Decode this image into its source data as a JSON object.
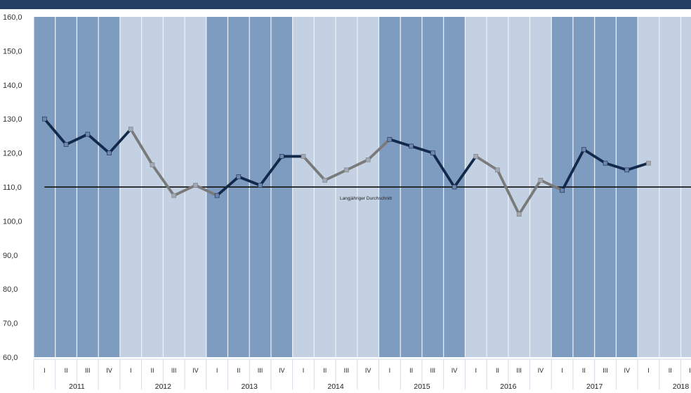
{
  "header": {
    "title": ""
  },
  "colors": {
    "header_bar": "#243f63",
    "band_dark": "#7e9cc0",
    "band_light": "#c3d1e3",
    "band_separator": "#eef3f9",
    "line_dark": "#13294a",
    "line_light": "#7a7a7a",
    "marker_dark": "#6f87ad",
    "marker_light": "#a3a9b4",
    "average_line": "#1a1a1a"
  },
  "chart_data": {
    "type": "line",
    "title": "",
    "xlabel": "",
    "ylabel": "",
    "ylim": [
      60,
      160
    ],
    "y_ticks": [
      "60,0",
      "70,0",
      "80,0",
      "90,0",
      "100,0",
      "110,0",
      "120,0",
      "130,0",
      "140,0",
      "150,0",
      "160,0"
    ],
    "years": [
      "2011",
      "2012",
      "2013",
      "2014",
      "2015",
      "2016",
      "2017",
      "2018"
    ],
    "year_shading": [
      "dark",
      "light",
      "dark",
      "light",
      "dark",
      "light",
      "dark",
      "light"
    ],
    "quarters": [
      "I",
      "II",
      "III",
      "IV"
    ],
    "values": [
      130,
      122.5,
      125.5,
      120,
      127,
      116.5,
      107.5,
      110.5,
      107.5,
      113,
      110.5,
      119,
      119,
      112,
      115,
      118,
      124,
      122,
      120,
      110,
      119,
      115,
      102,
      112,
      109,
      121,
      117,
      115,
      117
    ],
    "grid": false,
    "reference_line": {
      "value": 110,
      "label": "Langjähriger Durchschnitt"
    }
  }
}
